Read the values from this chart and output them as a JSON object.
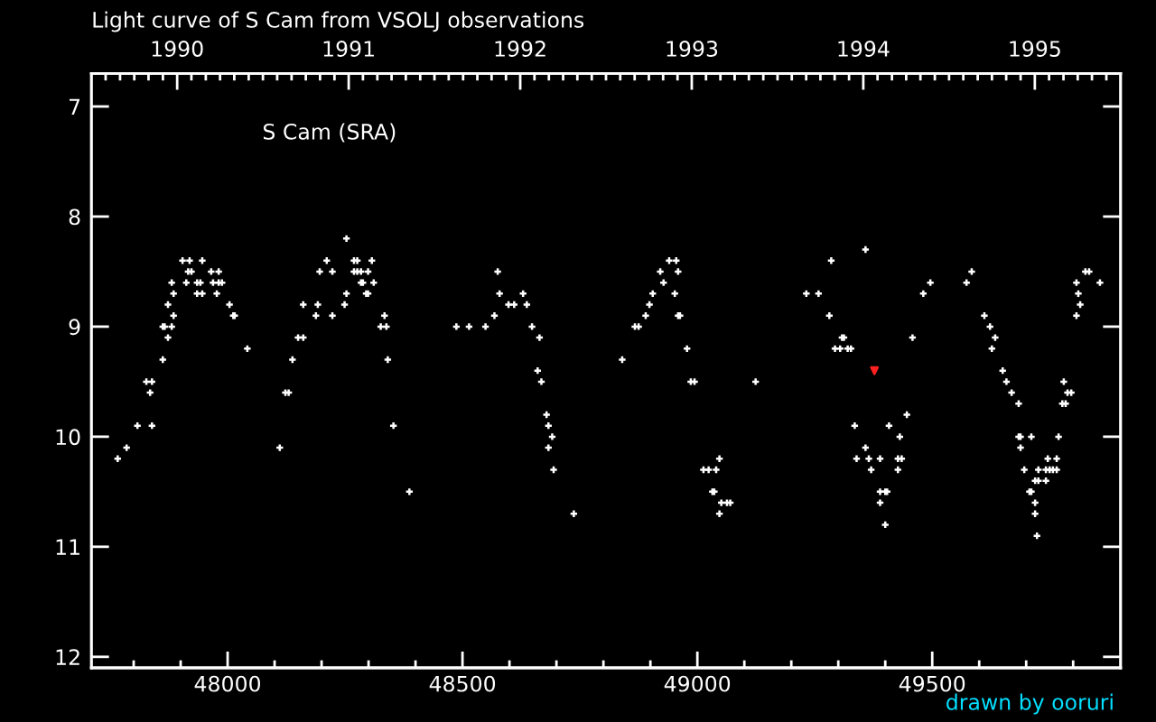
{
  "chart_data": {
    "type": "scatter",
    "title": "Light curve of S Cam from VSOLJ observations",
    "annotations": [
      "S Cam (SRA)",
      "drawn by ooruri"
    ],
    "series": [
      {
        "color": "#ffffff",
        "marker": "cross",
        "x": [
          47766,
          47785,
          47808,
          47839,
          47827,
          47839,
          47835,
          47862,
          47873,
          47862,
          47866,
          47881,
          47885,
          47873,
          47885,
          47881,
          47912,
          47904,
          47919,
          47946,
          47916,
          47923,
          47935,
          47942,
          47935,
          47946,
          47965,
          47981,
          47969,
          47981,
          47988,
          47977,
          48004,
          48012,
          48015,
          48042,
          48111,
          48123,
          48130,
          48138,
          48150,
          48161,
          48161,
          48188,
          48192,
          48196,
          48211,
          48223,
          48223,
          48249,
          48253,
          48253,
          48269,
          48276,
          48307,
          48269,
          48276,
          48284,
          48299,
          48284,
          48288,
          48311,
          48295,
          48299,
          48334,
          48326,
          48338,
          48341,
          48353,
          48387,
          48487,
          48514,
          48549,
          48575,
          48579,
          48568,
          48598,
          48610,
          48629,
          48637,
          48648,
          48664,
          48660,
          48668,
          48679,
          48683,
          48691,
          48683,
          48694,
          48737,
          48840,
          48867,
          48875,
          48890,
          48898,
          48905,
          48928,
          48921,
          48940,
          48955,
          48959,
          48952,
          48959,
          48963,
          48978,
          48986,
          48994,
          49013,
          49024,
          49040,
          49047,
          49032,
          49036,
          49051,
          49063,
          49070,
          49047,
          49124,
          49232,
          49258,
          49285,
          49281,
          49293,
          49304,
          49308,
          49312,
          49320,
          49327,
          49358,
          49335,
          49358,
          49339,
          49365,
          49389,
          49370,
          49408,
          49431,
          49446,
          49427,
          49435,
          49427,
          49389,
          49400,
          49404,
          49389,
          49400,
          49458,
          49481,
          49496,
          49573,
          49584,
          49611,
          49623,
          49634,
          49627,
          49650,
          49658,
          49669,
          49684,
          49684,
          49688,
          49711,
          49688,
          49696,
          49719,
          49726,
          49707,
          49711,
          49719,
          49719,
          49723,
          49726,
          49742,
          49750,
          49757,
          49765,
          49742,
          49746,
          49765,
          49769,
          49780,
          49788,
          49796,
          49777,
          49784,
          49807,
          49811,
          49815,
          49807,
          49826,
          49834,
          49857
        ],
        "values": [
          10.2,
          10.1,
          9.9,
          9.9,
          9.5,
          9.5,
          9.6,
          9.3,
          9.1,
          9.0,
          9.0,
          9.0,
          8.9,
          8.8,
          8.7,
          8.6,
          8.6,
          8.4,
          8.4,
          8.4,
          8.5,
          8.5,
          8.6,
          8.6,
          8.7,
          8.7,
          8.5,
          8.5,
          8.6,
          8.6,
          8.6,
          8.7,
          8.8,
          8.9,
          8.9,
          9.2,
          10.1,
          9.6,
          9.6,
          9.3,
          9.1,
          9.1,
          8.8,
          8.9,
          8.8,
          8.5,
          8.4,
          8.5,
          8.9,
          8.8,
          8.7,
          8.2,
          8.4,
          8.4,
          8.4,
          8.5,
          8.5,
          8.5,
          8.5,
          8.6,
          8.6,
          8.6,
          8.7,
          8.7,
          8.9,
          9.0,
          9.0,
          9.3,
          9.9,
          10.5,
          9.0,
          9.0,
          9.0,
          8.5,
          8.7,
          8.9,
          8.8,
          8.8,
          8.7,
          8.8,
          9.0,
          9.1,
          9.4,
          9.5,
          9.8,
          9.9,
          10.0,
          10.1,
          10.3,
          10.7,
          9.3,
          9.0,
          9.0,
          8.9,
          8.8,
          8.7,
          8.6,
          8.5,
          8.4,
          8.4,
          8.5,
          8.7,
          8.9,
          8.9,
          9.2,
          9.5,
          9.5,
          10.3,
          10.3,
          10.3,
          10.2,
          10.5,
          10.5,
          10.6,
          10.6,
          10.6,
          10.7,
          9.5,
          8.7,
          8.7,
          8.4,
          8.9,
          9.2,
          9.2,
          9.1,
          9.1,
          9.2,
          9.2,
          8.3,
          9.9,
          10.1,
          10.2,
          10.2,
          10.2,
          10.3,
          9.9,
          10.0,
          9.8,
          10.2,
          10.2,
          10.3,
          10.5,
          10.5,
          10.5,
          10.6,
          10.8,
          9.1,
          8.7,
          8.6,
          8.6,
          8.5,
          8.9,
          9.0,
          9.1,
          9.2,
          9.4,
          9.5,
          9.6,
          9.7,
          10.0,
          10.0,
          10.0,
          10.1,
          10.3,
          10.4,
          10.4,
          10.5,
          10.5,
          10.6,
          10.7,
          10.9,
          10.3,
          10.3,
          10.3,
          10.3,
          10.3,
          10.4,
          10.2,
          10.2,
          10.0,
          9.5,
          9.6,
          9.6,
          9.7,
          9.7,
          8.6,
          8.7,
          8.8,
          8.9,
          8.5,
          8.5,
          8.6
        ]
      },
      {
        "color": "#ff2020",
        "marker": "triangle",
        "x": [
          49377
        ],
        "values": [
          9.4
        ]
      }
    ],
    "xlim": [
      47710,
      49901
    ],
    "xticks": [
      {
        "value": 47800,
        "label": null
      },
      {
        "value": 47900,
        "label": null
      },
      48000,
      {
        "value": 48100,
        "label": null
      },
      {
        "value": 48200,
        "label": null
      },
      {
        "value": 48300,
        "label": null
      },
      {
        "value": 48400,
        "label": null
      },
      48500,
      {
        "value": 48600,
        "label": null
      },
      {
        "value": 48700,
        "label": null
      },
      {
        "value": 48800,
        "label": null
      },
      {
        "value": 48900,
        "label": null
      },
      49000,
      {
        "value": 49100,
        "label": null
      },
      {
        "value": 49200,
        "label": null
      },
      {
        "value": 49300,
        "label": null
      },
      {
        "value": 49400,
        "label": null
      },
      49500,
      {
        "value": 49600,
        "label": null
      },
      {
        "value": 49700,
        "label": null
      },
      {
        "value": 49800,
        "label": null
      }
    ],
    "x2lim": [
      1989.5,
      1995.5
    ],
    "x2ticks": [
      {
        "value": 1989.583,
        "label": null
      },
      {
        "value": 1989.667,
        "label": null
      },
      {
        "value": 1989.75,
        "label": null
      },
      {
        "value": 1989.833,
        "label": null
      },
      {
        "value": 1989.917,
        "label": null
      },
      1990,
      {
        "value": 1990.083,
        "label": null
      },
      {
        "value": 1990.167,
        "label": null
      },
      {
        "value": 1990.25,
        "label": null
      },
      {
        "value": 1990.333,
        "label": null
      },
      {
        "value": 1990.417,
        "label": null
      },
      {
        "value": 1990.5,
        "label": null
      },
      {
        "value": 1990.583,
        "label": null
      },
      {
        "value": 1990.667,
        "label": null
      },
      {
        "value": 1990.75,
        "label": null
      },
      {
        "value": 1990.833,
        "label": null
      },
      {
        "value": 1990.917,
        "label": null
      },
      1991,
      {
        "value": 1991.083,
        "label": null
      },
      {
        "value": 1991.167,
        "label": null
      },
      {
        "value": 1991.25,
        "label": null
      },
      {
        "value": 1991.333,
        "label": null
      },
      {
        "value": 1991.417,
        "label": null
      },
      {
        "value": 1991.5,
        "label": null
      },
      {
        "value": 1991.583,
        "label": null
      },
      {
        "value": 1991.667,
        "label": null
      },
      {
        "value": 1991.75,
        "label": null
      },
      {
        "value": 1991.833,
        "label": null
      },
      {
        "value": 1991.917,
        "label": null
      },
      1992,
      {
        "value": 1992.083,
        "label": null
      },
      {
        "value": 1992.167,
        "label": null
      },
      {
        "value": 1992.25,
        "label": null
      },
      {
        "value": 1992.333,
        "label": null
      },
      {
        "value": 1992.417,
        "label": null
      },
      {
        "value": 1992.5,
        "label": null
      },
      {
        "value": 1992.583,
        "label": null
      },
      {
        "value": 1992.667,
        "label": null
      },
      {
        "value": 1992.75,
        "label": null
      },
      {
        "value": 1992.833,
        "label": null
      },
      {
        "value": 1992.917,
        "label": null
      },
      1993,
      {
        "value": 1993.083,
        "label": null
      },
      {
        "value": 1993.167,
        "label": null
      },
      {
        "value": 1993.25,
        "label": null
      },
      {
        "value": 1993.333,
        "label": null
      },
      {
        "value": 1993.417,
        "label": null
      },
      {
        "value": 1993.5,
        "label": null
      },
      {
        "value": 1993.583,
        "label": null
      },
      {
        "value": 1993.667,
        "label": null
      },
      {
        "value": 1993.75,
        "label": null
      },
      {
        "value": 1993.833,
        "label": null
      },
      {
        "value": 1993.917,
        "label": null
      },
      1994,
      {
        "value": 1994.083,
        "label": null
      },
      {
        "value": 1994.167,
        "label": null
      },
      {
        "value": 1994.25,
        "label": null
      },
      {
        "value": 1994.333,
        "label": null
      },
      {
        "value": 1994.417,
        "label": null
      },
      {
        "value": 1994.5,
        "label": null
      },
      {
        "value": 1994.583,
        "label": null
      },
      {
        "value": 1994.667,
        "label": null
      },
      {
        "value": 1994.75,
        "label": null
      },
      {
        "value": 1994.833,
        "label": null
      },
      {
        "value": 1994.917,
        "label": null
      },
      1995,
      {
        "value": 1995.083,
        "label": null
      },
      {
        "value": 1995.167,
        "label": null
      },
      {
        "value": 1995.25,
        "label": null
      },
      {
        "value": 1995.333,
        "label": null
      },
      {
        "value": 1995.417,
        "label": null
      }
    ],
    "ylim": [
      12.1,
      6.7
    ],
    "yticks": [
      7,
      8,
      9,
      10,
      11,
      12
    ]
  }
}
